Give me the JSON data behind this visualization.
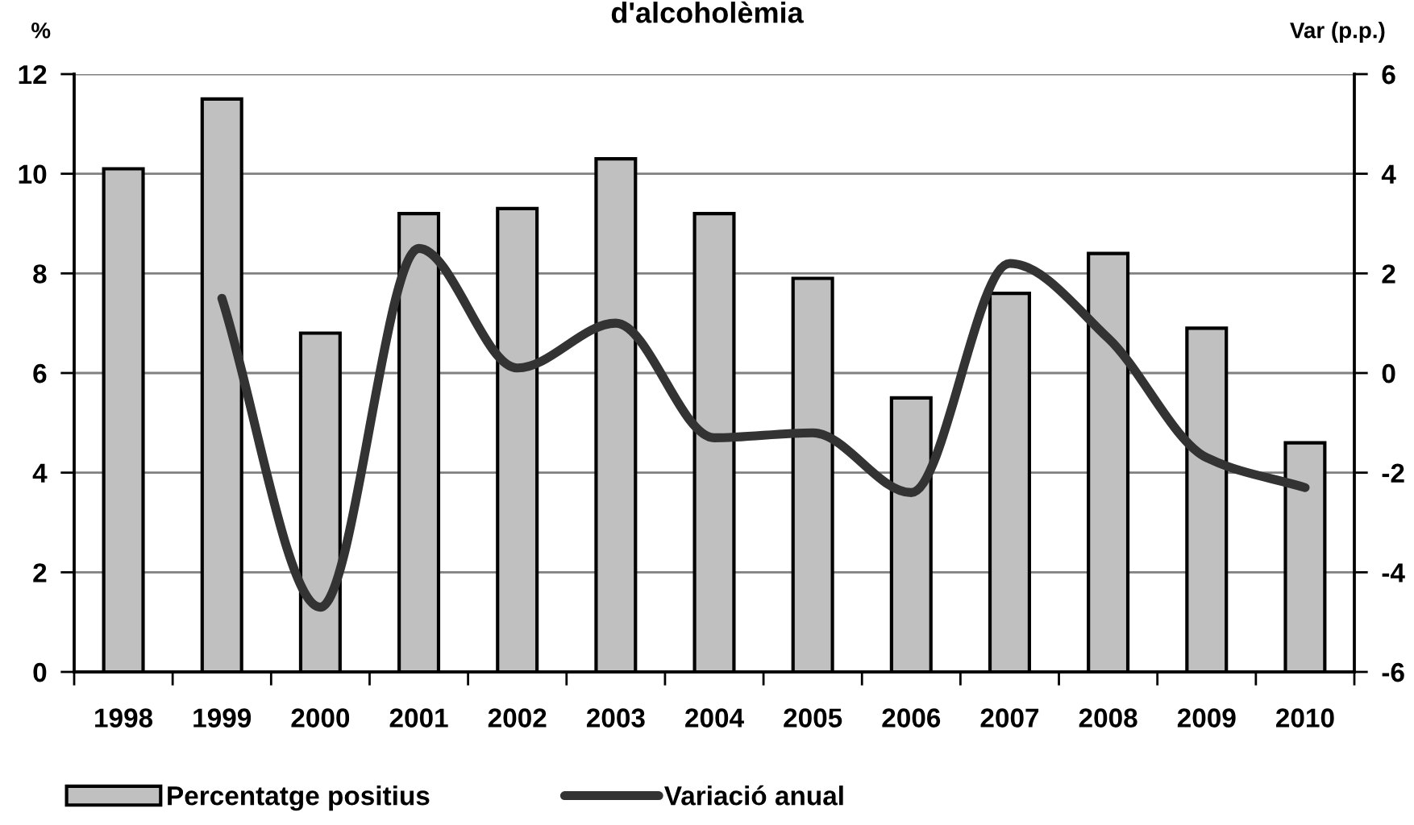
{
  "chart_data": {
    "type": "bar",
    "title": "d'alcoholèmia",
    "ylabel": "%",
    "y2label": "Var (p.p.)",
    "categories": [
      "1998",
      "1999",
      "2000",
      "2001",
      "2002",
      "2003",
      "2004",
      "2005",
      "2006",
      "2007",
      "2008",
      "2009",
      "2010"
    ],
    "series": [
      {
        "name": "Percentatge positius",
        "color": "#c0c0c0",
        "values": [
          10.1,
          11.5,
          6.8,
          9.2,
          9.3,
          10.3,
          9.2,
          7.9,
          5.5,
          7.6,
          8.4,
          6.9,
          4.6
        ]
      },
      {
        "name": "Variació anual",
        "type": "line",
        "axis": "y2",
        "color": "#333333",
        "values": [
          null,
          1.5,
          -4.7,
          2.5,
          0.1,
          1.0,
          -1.3,
          -1.2,
          -2.4,
          2.2,
          0.7,
          -1.7,
          -2.3
        ]
      }
    ],
    "ylim": [
      0,
      12
    ],
    "yticks": [
      0,
      2,
      4,
      6,
      8,
      10,
      12
    ],
    "y2lim": [
      -6,
      6
    ],
    "y2ticks": [
      -6,
      -4,
      -2,
      0,
      2,
      4,
      6
    ],
    "grid": "y",
    "legend": "bottom",
    "line_style": "solid"
  }
}
